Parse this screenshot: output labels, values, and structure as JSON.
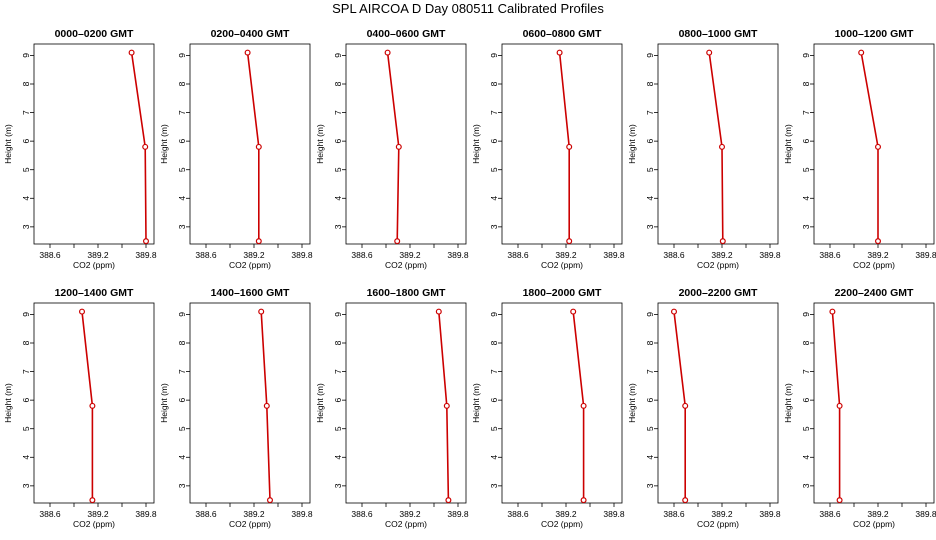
{
  "title": "SPL AIRCOA D  Day 080511  Calibrated Profiles",
  "chart_data": {
    "type": "line",
    "xlabel": "CO2 (ppm)",
    "ylabel": "Height (m)",
    "xlim": [
      388.4,
      389.9
    ],
    "ylim": [
      2.4,
      9.4
    ],
    "xticks": [
      "388.6",
      "389.2",
      "389.8"
    ],
    "yticks": [
      "3",
      "4",
      "5",
      "6",
      "7",
      "8",
      "9"
    ],
    "grid": false,
    "line_color": "#cc0000",
    "heights": [
      9.1,
      5.8,
      2.5
    ],
    "panels": [
      {
        "title": "0000–0200 GMT",
        "values": [
          389.62,
          389.79,
          389.8
        ]
      },
      {
        "title": "0200–0400 GMT",
        "values": [
          389.12,
          389.26,
          389.26
        ]
      },
      {
        "title": "0400–0600 GMT",
        "values": [
          388.92,
          389.06,
          389.04
        ]
      },
      {
        "title": "0600–0800 GMT",
        "values": [
          389.12,
          389.24,
          389.24
        ]
      },
      {
        "title": "0800–1000 GMT",
        "values": [
          389.04,
          389.2,
          389.21
        ]
      },
      {
        "title": "1000–1200 GMT",
        "values": [
          388.99,
          389.2,
          389.2
        ]
      },
      {
        "title": "1200–1400 GMT",
        "values": [
          389.0,
          389.13,
          389.13
        ]
      },
      {
        "title": "1400–1600 GMT",
        "values": [
          389.29,
          389.36,
          389.4
        ]
      },
      {
        "title": "1600–1800 GMT",
        "values": [
          389.56,
          389.66,
          389.68
        ]
      },
      {
        "title": "1800–2000 GMT",
        "values": [
          389.29,
          389.42,
          389.42
        ]
      },
      {
        "title": "2000–2200 GMT",
        "values": [
          388.6,
          388.74,
          388.74
        ]
      },
      {
        "title": "2200–2400 GMT",
        "values": [
          388.63,
          388.72,
          388.72
        ]
      }
    ]
  }
}
